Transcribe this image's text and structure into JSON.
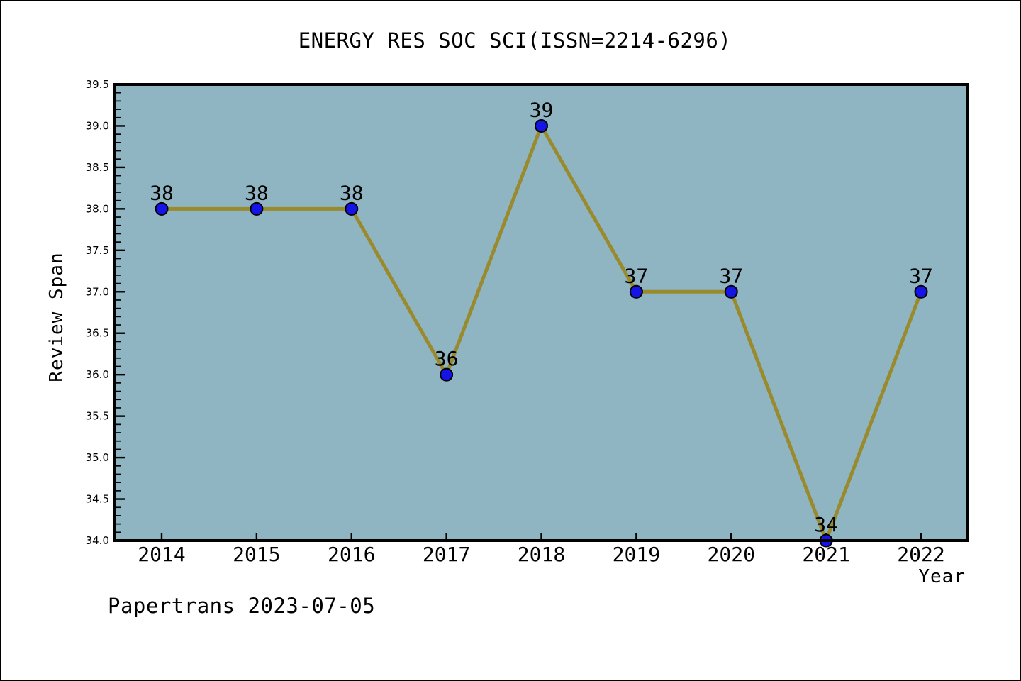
{
  "page": {
    "footer": "Papertrans 2023-07-05"
  },
  "chart_data": {
    "type": "line",
    "title": "ENERGY RES SOC SCI(ISSN=2214-6296)",
    "xlabel": "Year",
    "ylabel": "Review Span",
    "x": [
      2014,
      2015,
      2016,
      2017,
      2018,
      2019,
      2020,
      2021,
      2022
    ],
    "series": [
      {
        "name": "Review Span",
        "values": [
          38,
          38,
          38,
          36,
          39,
          37,
          37,
          34,
          37
        ]
      }
    ],
    "point_labels": [
      "38",
      "38",
      "38",
      "36",
      "39",
      "37",
      "37",
      "34",
      "37"
    ],
    "xticks": [
      "2014",
      "2015",
      "2016",
      "2017",
      "2018",
      "2019",
      "2020",
      "2021",
      "2022"
    ],
    "yticks": [
      "34.0",
      "34.5",
      "35.0",
      "35.5",
      "36.0",
      "36.5",
      "37.0",
      "37.5",
      "38.0",
      "38.5",
      "39.0",
      "39.5"
    ],
    "ylim": [
      34.0,
      39.5
    ],
    "yminor_step": 0.1,
    "grid": false,
    "legend_position": "none",
    "colors": {
      "page_bg": "#ffffff",
      "plot_bg": "#8fb5c2",
      "line": "#998a2e",
      "marker": "#1414e6",
      "marker_edge": "#000000",
      "axis": "#000000",
      "text": "#000000"
    }
  }
}
